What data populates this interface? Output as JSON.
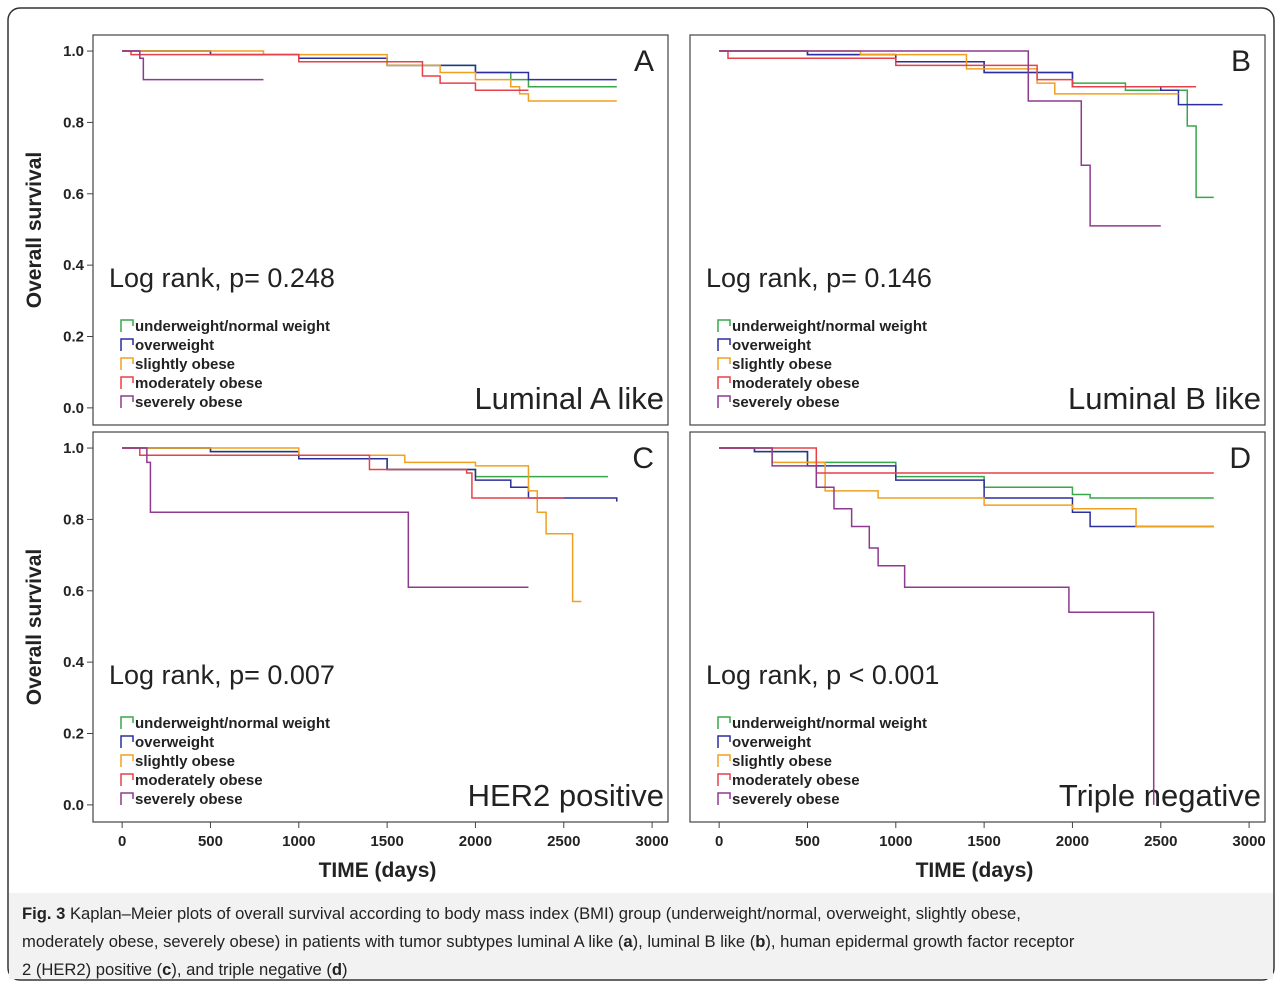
{
  "chart_data": [
    {
      "type": "line",
      "step": true,
      "panel_letter": "A",
      "subtype": "Luminal A like",
      "annotation": "Log rank, p= 0.248",
      "ylabel": "Overall survival",
      "xlim": [
        -165,
        3090
      ],
      "ylim": [
        -0.048,
        1.045
      ],
      "yticks": [
        {
          "value": 0,
          "label": "0.0"
        },
        {
          "value": 0.2,
          "label": "0.2"
        },
        {
          "value": 0.4,
          "label": "0.4"
        },
        {
          "value": 0.6,
          "label": "0.6"
        },
        {
          "value": 0.8,
          "label": "0.8"
        },
        {
          "value": 1,
          "label": "1.0"
        }
      ],
      "series": [
        {
          "name": "underweight/normal weight",
          "color": "#3aa64a",
          "x": [
            0,
            500,
            1000,
            1500,
            2000,
            2200,
            2300,
            2800
          ],
          "values": [
            1,
            0.99,
            0.98,
            0.96,
            0.94,
            0.92,
            0.9,
            0.9
          ]
        },
        {
          "name": "overweight",
          "color": "#2b2f9e",
          "x": [
            0,
            500,
            1000,
            1500,
            2000,
            2300,
            2800
          ],
          "values": [
            1,
            0.99,
            0.98,
            0.96,
            0.94,
            0.92,
            0.92
          ]
        },
        {
          "name": "slightly obese",
          "color": "#f0a020",
          "x": [
            0,
            800,
            1500,
            1800,
            2000,
            2200,
            2250,
            2300,
            2800
          ],
          "values": [
            1,
            0.99,
            0.96,
            0.94,
            0.92,
            0.9,
            0.88,
            0.86,
            0.86
          ]
        },
        {
          "name": "moderately obese",
          "color": "#e8404a",
          "x": [
            0,
            50,
            1000,
            1700,
            1800,
            2000,
            2300
          ],
          "values": [
            1,
            0.99,
            0.97,
            0.93,
            0.91,
            0.89,
            0.89
          ]
        },
        {
          "name": "severely obese",
          "color": "#8e3a8e",
          "x": [
            0,
            100,
            120,
            800
          ],
          "values": [
            1,
            0.98,
            0.92,
            0.92
          ]
        }
      ]
    },
    {
      "type": "line",
      "step": true,
      "panel_letter": "B",
      "subtype": "Luminal B like",
      "annotation": "Log rank, p= 0.146",
      "xlim": [
        -165,
        3090
      ],
      "ylim": [
        -0.048,
        1.045
      ],
      "series": [
        {
          "name": "underweight/normal weight",
          "color": "#3aa64a",
          "x": [
            0,
            500,
            1000,
            1500,
            2000,
            2300,
            2600,
            2650,
            2700,
            2800
          ],
          "values": [
            1,
            0.99,
            0.97,
            0.94,
            0.91,
            0.89,
            0.89,
            0.79,
            0.59,
            0.59
          ]
        },
        {
          "name": "overweight",
          "color": "#2b2f9e",
          "x": [
            0,
            500,
            1000,
            1500,
            2000,
            2500,
            2600,
            2850
          ],
          "values": [
            1,
            0.99,
            0.97,
            0.94,
            0.9,
            0.89,
            0.85,
            0.85
          ]
        },
        {
          "name": "slightly obese",
          "color": "#f0a020",
          "x": [
            0,
            800,
            1400,
            1800,
            1900,
            2600
          ],
          "values": [
            1,
            0.99,
            0.95,
            0.91,
            0.88,
            0.88
          ]
        },
        {
          "name": "moderately obese",
          "color": "#e8404a",
          "x": [
            0,
            50,
            1000,
            1800,
            2000,
            2700
          ],
          "values": [
            1,
            0.98,
            0.96,
            0.92,
            0.9,
            0.9
          ]
        },
        {
          "name": "severely obese",
          "color": "#8e3a8e",
          "x": [
            0,
            1700,
            1750,
            2050,
            2100,
            2500
          ],
          "values": [
            1,
            1,
            0.86,
            0.68,
            0.51,
            0.51
          ]
        }
      ]
    },
    {
      "type": "line",
      "step": true,
      "panel_letter": "C",
      "subtype": "HER2 positive",
      "annotation": "Log rank, p= 0.007",
      "ylabel": "Overall survival",
      "xlabel": "TIME (days)",
      "xlim": [
        -165,
        3090
      ],
      "ylim": [
        -0.048,
        1.045
      ],
      "yticks": [
        {
          "value": 0,
          "label": "0.0"
        },
        {
          "value": 0.2,
          "label": "0.2"
        },
        {
          "value": 0.4,
          "label": "0.4"
        },
        {
          "value": 0.6,
          "label": "0.6"
        },
        {
          "value": 0.8,
          "label": "0.8"
        },
        {
          "value": 1,
          "label": "1.0"
        }
      ],
      "xticks": [
        0,
        500,
        1000,
        1500,
        2000,
        2500,
        3000
      ],
      "series": [
        {
          "name": "underweight/normal weight",
          "color": "#3aa64a",
          "x": [
            0,
            500,
            1000,
            1500,
            2000,
            2750
          ],
          "values": [
            1,
            0.99,
            0.97,
            0.94,
            0.92,
            0.92
          ]
        },
        {
          "name": "overweight",
          "color": "#2b2f9e",
          "x": [
            0,
            500,
            1000,
            1500,
            2000,
            2200,
            2300,
            2800
          ],
          "values": [
            1,
            0.99,
            0.97,
            0.94,
            0.91,
            0.89,
            0.86,
            0.85
          ]
        },
        {
          "name": "slightly obese",
          "color": "#f0a020",
          "x": [
            0,
            1000,
            1600,
            2000,
            2300,
            2350,
            2400,
            2550,
            2600
          ],
          "values": [
            1,
            0.98,
            0.96,
            0.95,
            0.88,
            0.82,
            0.76,
            0.57,
            0.57
          ]
        },
        {
          "name": "moderately obese",
          "color": "#e8404a",
          "x": [
            0,
            100,
            1400,
            1950,
            1980,
            2500
          ],
          "values": [
            1,
            0.98,
            0.94,
            0.93,
            0.86,
            0.86
          ]
        },
        {
          "name": "severely obese",
          "color": "#8e3a8e",
          "x": [
            0,
            140,
            160,
            1610,
            1620,
            2300
          ],
          "values": [
            1,
            0.96,
            0.82,
            0.82,
            0.61,
            0.61
          ]
        }
      ]
    },
    {
      "type": "line",
      "step": true,
      "panel_letter": "D",
      "subtype": "Triple negative",
      "annotation": "Log rank, p < 0.001",
      "xlabel": "TIME (days)",
      "xlim": [
        -165,
        3090
      ],
      "ylim": [
        -0.048,
        1.045
      ],
      "xticks": [
        0,
        500,
        1000,
        1500,
        2000,
        2500,
        3000
      ],
      "series": [
        {
          "name": "underweight/normal weight",
          "color": "#3aa64a",
          "x": [
            0,
            200,
            500,
            1000,
            1500,
            2000,
            2100,
            2800
          ],
          "values": [
            1,
            0.99,
            0.96,
            0.92,
            0.89,
            0.87,
            0.86,
            0.86
          ]
        },
        {
          "name": "overweight",
          "color": "#2b2f9e",
          "x": [
            0,
            200,
            500,
            1000,
            1500,
            2000,
            2100,
            2800
          ],
          "values": [
            1,
            0.99,
            0.95,
            0.91,
            0.86,
            0.82,
            0.78,
            0.78
          ]
        },
        {
          "name": "slightly obese",
          "color": "#f0a020",
          "x": [
            0,
            300,
            600,
            900,
            1500,
            2000,
            2350,
            2360,
            2800
          ],
          "values": [
            1,
            0.96,
            0.88,
            0.86,
            0.84,
            0.83,
            0.83,
            0.78,
            0.78
          ]
        },
        {
          "name": "moderately obese",
          "color": "#e8404a",
          "x": [
            0,
            500,
            550,
            2800
          ],
          "values": [
            1,
            1,
            0.93,
            0.93
          ]
        },
        {
          "name": "severely obese",
          "color": "#8e3a8e",
          "x": [
            0,
            300,
            550,
            650,
            750,
            850,
            900,
            1050,
            1950,
            1980,
            2450,
            2460
          ],
          "values": [
            1,
            0.95,
            0.89,
            0.83,
            0.78,
            0.72,
            0.67,
            0.61,
            0.61,
            0.54,
            0.54,
            0
          ]
        }
      ]
    }
  ],
  "caption": {
    "lines": [
      [
        {
          "text": "Fig. 3",
          "bold": true
        },
        {
          "text": " Kaplan–Meier plots of overall survival according to body mass index (BMI) group (underweight/normal, overweight, slightly obese,",
          "bold": false
        }
      ],
      [
        {
          "text": "moderately obese, severely obese) in patients with tumor subtypes luminal A like (",
          "bold": false
        },
        {
          "text": "a",
          "bold": true
        },
        {
          "text": "), luminal B like (",
          "bold": false
        },
        {
          "text": "b",
          "bold": true
        },
        {
          "text": "), human epidermal growth factor receptor",
          "bold": false
        }
      ],
      [
        {
          "text": "2 (HER2) positive (",
          "bold": false
        },
        {
          "text": "c",
          "bold": true
        },
        {
          "text": "), and triple negative (",
          "bold": false
        },
        {
          "text": "d",
          "bold": true
        },
        {
          "text": ")",
          "bold": false
        }
      ]
    ]
  }
}
